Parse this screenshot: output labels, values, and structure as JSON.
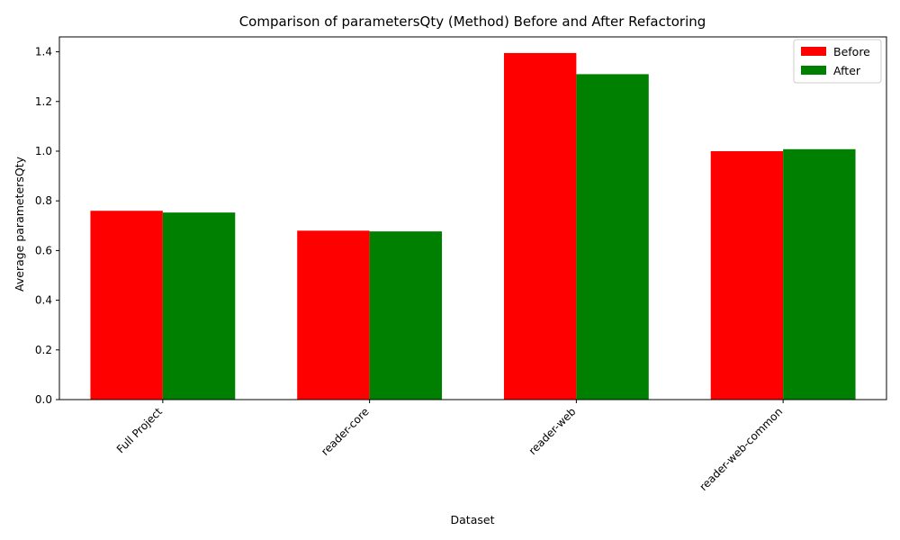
{
  "chart_data": {
    "type": "bar",
    "title": "Comparison of parametersQty (Method) Before and After Refactoring",
    "xlabel": "Dataset",
    "ylabel": "Average parametersQty",
    "categories": [
      "Full Project",
      "reader-core",
      "reader-web",
      "reader-web-common"
    ],
    "series": [
      {
        "name": "Before",
        "color": "#ff0000",
        "values": [
          0.76,
          0.68,
          1.395,
          1.0
        ]
      },
      {
        "name": "After",
        "color": "#008000",
        "values": [
          0.753,
          0.677,
          1.31,
          1.008
        ]
      }
    ],
    "ylim": [
      0,
      1.46
    ],
    "yticks": [
      "0.0",
      "0.2",
      "0.4",
      "0.6",
      "0.8",
      "1.0",
      "1.2",
      "1.4"
    ],
    "legend": "top-right",
    "grid": false
  }
}
